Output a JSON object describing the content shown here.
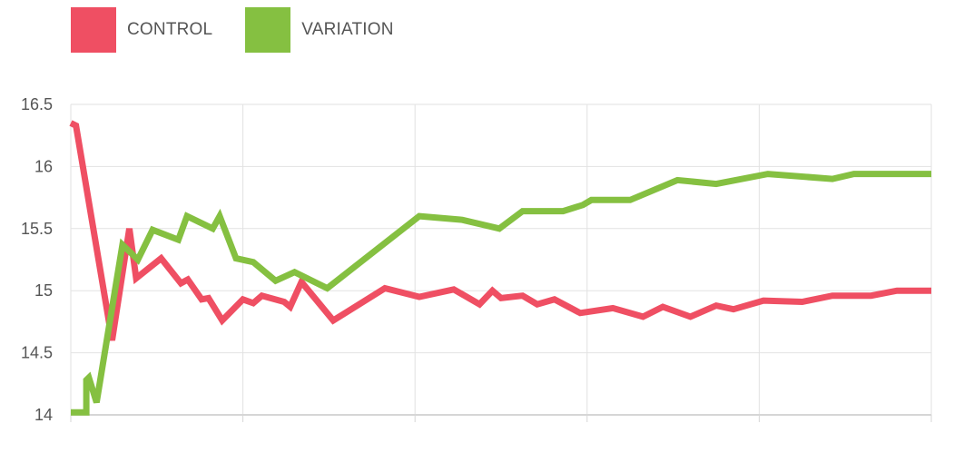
{
  "legend": [
    {
      "name": "CONTROL",
      "color": "#EF4F63"
    },
    {
      "name": "VARIATION",
      "color": "#85C041"
    }
  ],
  "chart_data": {
    "type": "line",
    "xlim": [
      0,
      100
    ],
    "ylim": [
      14,
      16.5
    ],
    "yticks": [
      "14",
      "14.5",
      "15",
      "15.5",
      "16",
      "16.5"
    ],
    "ytick_values": [
      14,
      14.5,
      15,
      15.5,
      16,
      16.5
    ],
    "xgrid": [
      0,
      20,
      40,
      60,
      80,
      100
    ],
    "grid": true,
    "legend_position": "top-left",
    "series": [
      {
        "name": "CONTROL",
        "color": "#EF4F63",
        "points": [
          [
            0,
            16.35
          ],
          [
            0.6,
            16.33
          ],
          [
            4.8,
            14.6
          ],
          [
            6.8,
            15.5
          ],
          [
            7.6,
            15.1
          ],
          [
            10.5,
            15.26
          ],
          [
            12.8,
            15.06
          ],
          [
            13.6,
            15.09
          ],
          [
            15.2,
            14.93
          ],
          [
            16.0,
            14.94
          ],
          [
            17.6,
            14.76
          ],
          [
            20.0,
            14.93
          ],
          [
            21.2,
            14.9
          ],
          [
            22.2,
            14.96
          ],
          [
            24.8,
            14.91
          ],
          [
            25.5,
            14.87
          ],
          [
            26.8,
            15.07
          ],
          [
            30.5,
            14.76
          ],
          [
            36.5,
            15.02
          ],
          [
            40.5,
            14.95
          ],
          [
            44.5,
            15.01
          ],
          [
            47.5,
            14.89
          ],
          [
            49.0,
            15.0
          ],
          [
            50.0,
            14.94
          ],
          [
            52.5,
            14.96
          ],
          [
            54.2,
            14.89
          ],
          [
            56.2,
            14.93
          ],
          [
            59.2,
            14.82
          ],
          [
            63.0,
            14.86
          ],
          [
            66.5,
            14.79
          ],
          [
            68.8,
            14.87
          ],
          [
            72.0,
            14.79
          ],
          [
            75.0,
            14.88
          ],
          [
            77.0,
            14.85
          ],
          [
            80.5,
            14.92
          ],
          [
            85.0,
            14.91
          ],
          [
            88.5,
            14.96
          ],
          [
            93.0,
            14.96
          ],
          [
            96.0,
            15.0
          ],
          [
            100,
            15.0
          ]
        ]
      },
      {
        "name": "VARIATION",
        "color": "#85C041",
        "points": [
          [
            0,
            14.02
          ],
          [
            1.8,
            14.02
          ],
          [
            1.8,
            14.28
          ],
          [
            2.1,
            14.3
          ],
          [
            3.0,
            14.1
          ],
          [
            6.0,
            15.37
          ],
          [
            7.8,
            15.25
          ],
          [
            9.5,
            15.49
          ],
          [
            12.5,
            15.41
          ],
          [
            13.5,
            15.6
          ],
          [
            16.5,
            15.5
          ],
          [
            17.3,
            15.6
          ],
          [
            19.2,
            15.26
          ],
          [
            21.2,
            15.23
          ],
          [
            23.8,
            15.08
          ],
          [
            26.0,
            15.15
          ],
          [
            29.8,
            15.02
          ],
          [
            40.5,
            15.6
          ],
          [
            45.5,
            15.57
          ],
          [
            49.8,
            15.5
          ],
          [
            52.5,
            15.64
          ],
          [
            57.2,
            15.64
          ],
          [
            59.5,
            15.69
          ],
          [
            60.5,
            15.73
          ],
          [
            65.0,
            15.73
          ],
          [
            70.5,
            15.89
          ],
          [
            75.0,
            15.86
          ],
          [
            81.0,
            15.94
          ],
          [
            88.5,
            15.9
          ],
          [
            91.0,
            15.94
          ],
          [
            100,
            15.94
          ]
        ]
      }
    ]
  }
}
